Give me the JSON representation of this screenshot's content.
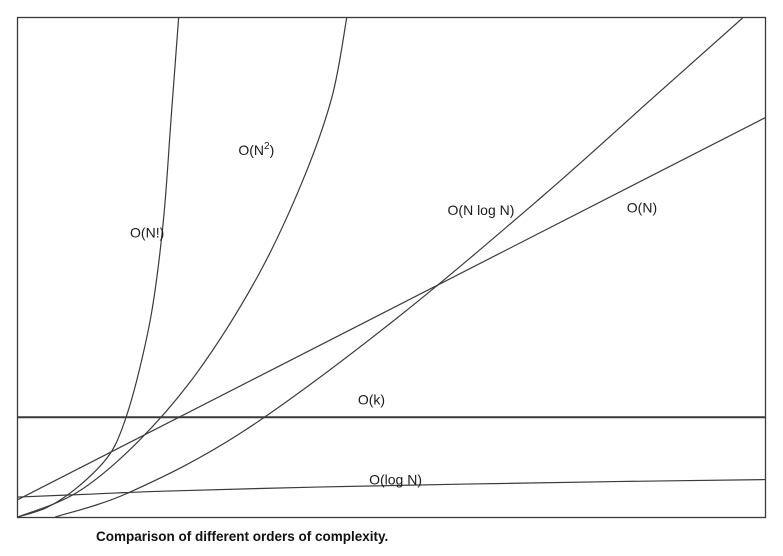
{
  "chart_data": {
    "type": "line",
    "caption": "Comparison of different orders of complexity.",
    "xlabel": "",
    "ylabel": "",
    "xlim": [
      0,
      100
    ],
    "ylim": [
      0,
      100
    ],
    "grid": false,
    "legend": "none",
    "line_color": "#3a3a3a",
    "series": [
      {
        "name": "O(N!)",
        "points": [
          [
            0,
            0
          ],
          [
            4,
            2
          ],
          [
            8,
            6
          ],
          [
            12,
            12
          ],
          [
            14,
            18
          ],
          [
            16,
            28
          ],
          [
            18,
            42
          ],
          [
            19.5,
            60
          ],
          [
            20.5,
            80
          ],
          [
            21.5,
            100
          ]
        ]
      },
      {
        "name": "O(N²)",
        "points": [
          [
            0,
            0
          ],
          [
            8,
            5
          ],
          [
            16,
            15
          ],
          [
            24,
            29
          ],
          [
            32,
            48
          ],
          [
            38,
            67
          ],
          [
            42,
            84
          ],
          [
            44,
            100
          ]
        ]
      },
      {
        "name": "O(N log N)",
        "points": [
          [
            5,
            0
          ],
          [
            15,
            5
          ],
          [
            30,
            17
          ],
          [
            50,
            39
          ],
          [
            70,
            64
          ],
          [
            85,
            84
          ],
          [
            97,
            100
          ]
        ]
      },
      {
        "name": "O(N)",
        "points": [
          [
            0,
            3.5
          ],
          [
            100,
            80
          ]
        ]
      },
      {
        "name": "O(k)",
        "points": [
          [
            0,
            20
          ],
          [
            100,
            20
          ]
        ]
      },
      {
        "name": "O(log N)",
        "points": [
          [
            0,
            4
          ],
          [
            10,
            4.6
          ],
          [
            20,
            5.2
          ],
          [
            40,
            6
          ],
          [
            60,
            6.6
          ],
          [
            80,
            7.1
          ],
          [
            100,
            7.5
          ]
        ]
      }
    ],
    "annotations": [
      {
        "text": "O(N!)",
        "x": 15,
        "y": 56
      },
      {
        "text_base": "O(N",
        "text_sup": "2",
        "text_end": ")",
        "x": 29.5,
        "y": 72.5
      },
      {
        "text": "O(N log N)",
        "x": 57.5,
        "y": 60.5
      },
      {
        "text": "O(N)",
        "x": 81.5,
        "y": 61
      },
      {
        "text": "O(k)",
        "x": 45.5,
        "y": 22.5
      },
      {
        "text": "O(log N)",
        "x": 47,
        "y": 6.5
      }
    ]
  }
}
